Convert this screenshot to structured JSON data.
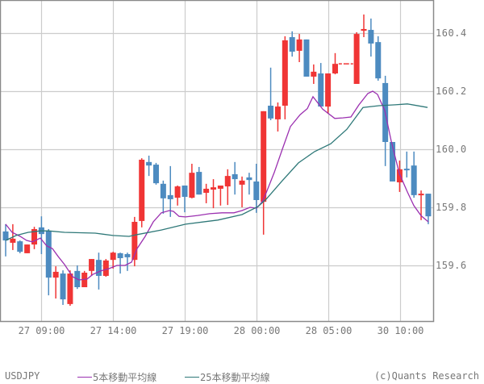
{
  "chart_data": {
    "type": "candlestick",
    "symbol": "USDJPY",
    "up_color": "#f03535",
    "down_color": "#4d8bc0",
    "ylim": [
      159.43,
      160.51
    ],
    "yticks": [
      159.6,
      159.8,
      160.0,
      160.2,
      160.4
    ],
    "ytick_labels": [
      "159.6",
      "159.8",
      "160.0",
      "160.2",
      "160.4"
    ],
    "xtick_labels": [
      "27 09:00",
      "27 14:00",
      "27 19:00",
      "28 00:00",
      "28 05:00",
      "30 10:00"
    ],
    "xtick_candle_index": [
      5,
      15,
      25,
      35,
      45,
      55
    ],
    "grid": true,
    "candles": [
      {
        "o": 159.717,
        "h": 159.742,
        "l": 159.631,
        "c": 159.686
      },
      {
        "o": 159.678,
        "h": 159.742,
        "l": 159.653,
        "c": 159.692
      },
      {
        "o": 159.683,
        "h": 159.686,
        "l": 159.642,
        "c": 159.647
      },
      {
        "o": 159.642,
        "h": 159.672,
        "l": 159.642,
        "c": 159.672
      },
      {
        "o": 159.672,
        "h": 159.733,
        "l": 159.656,
        "c": 159.725
      },
      {
        "o": 159.731,
        "h": 159.769,
        "l": 159.639,
        "c": 159.708
      },
      {
        "o": 159.719,
        "h": 159.725,
        "l": 159.497,
        "c": 159.558
      },
      {
        "o": 159.558,
        "h": 159.597,
        "l": 159.486,
        "c": 159.578
      },
      {
        "o": 159.572,
        "h": 159.583,
        "l": 159.464,
        "c": 159.483
      },
      {
        "o": 159.467,
        "h": 159.583,
        "l": 159.461,
        "c": 159.572
      },
      {
        "o": 159.581,
        "h": 159.6,
        "l": 159.519,
        "c": 159.525
      },
      {
        "o": 159.525,
        "h": 159.581,
        "l": 159.525,
        "c": 159.575
      },
      {
        "o": 159.581,
        "h": 159.622,
        "l": 159.564,
        "c": 159.622
      },
      {
        "o": 159.619,
        "h": 159.644,
        "l": 159.517,
        "c": 159.564
      },
      {
        "o": 159.564,
        "h": 159.622,
        "l": 159.561,
        "c": 159.617
      },
      {
        "o": 159.619,
        "h": 159.647,
        "l": 159.589,
        "c": 159.644
      },
      {
        "o": 159.642,
        "h": 159.644,
        "l": 159.572,
        "c": 159.625
      },
      {
        "o": 159.639,
        "h": 159.644,
        "l": 159.581,
        "c": 159.628
      },
      {
        "o": 159.619,
        "h": 159.767,
        "l": 159.597,
        "c": 159.75
      },
      {
        "o": 159.753,
        "h": 159.969,
        "l": 159.731,
        "c": 159.964
      },
      {
        "o": 159.956,
        "h": 159.978,
        "l": 159.908,
        "c": 159.944
      },
      {
        "o": 159.947,
        "h": 159.953,
        "l": 159.878,
        "c": 159.883
      },
      {
        "o": 159.881,
        "h": 159.892,
        "l": 159.778,
        "c": 159.831
      },
      {
        "o": 159.842,
        "h": 159.942,
        "l": 159.767,
        "c": 159.828
      },
      {
        "o": 159.833,
        "h": 159.875,
        "l": 159.806,
        "c": 159.872
      },
      {
        "o": 159.875,
        "h": 159.875,
        "l": 159.783,
        "c": 159.836
      },
      {
        "o": 159.833,
        "h": 159.95,
        "l": 159.831,
        "c": 159.919
      },
      {
        "o": 159.922,
        "h": 159.939,
        "l": 159.844,
        "c": 159.844
      },
      {
        "o": 159.85,
        "h": 159.881,
        "l": 159.814,
        "c": 159.864
      },
      {
        "o": 159.861,
        "h": 159.897,
        "l": 159.797,
        "c": 159.869
      },
      {
        "o": 159.864,
        "h": 159.875,
        "l": 159.806,
        "c": 159.875
      },
      {
        "o": 159.872,
        "h": 159.931,
        "l": 159.808,
        "c": 159.908
      },
      {
        "o": 159.914,
        "h": 159.956,
        "l": 159.844,
        "c": 159.897
      },
      {
        "o": 159.878,
        "h": 159.906,
        "l": 159.8,
        "c": 159.892
      },
      {
        "o": 159.903,
        "h": 159.919,
        "l": 159.844,
        "c": 159.894
      },
      {
        "o": 159.889,
        "h": 159.95,
        "l": 159.781,
        "c": 159.825
      },
      {
        "o": 159.819,
        "h": 160.131,
        "l": 159.706,
        "c": 160.131
      },
      {
        "o": 160.15,
        "h": 160.281,
        "l": 160.1,
        "c": 160.106
      },
      {
        "o": 160.103,
        "h": 160.161,
        "l": 160.061,
        "c": 160.147
      },
      {
        "o": 160.15,
        "h": 160.389,
        "l": 160.103,
        "c": 160.375
      },
      {
        "o": 160.386,
        "h": 160.406,
        "l": 160.319,
        "c": 160.336
      },
      {
        "o": 160.339,
        "h": 160.397,
        "l": 160.3,
        "c": 160.378
      },
      {
        "o": 160.378,
        "h": 160.378,
        "l": 160.25,
        "c": 160.25
      },
      {
        "o": 160.25,
        "h": 160.292,
        "l": 160.225,
        "c": 160.267
      },
      {
        "o": 160.261,
        "h": 160.297,
        "l": 160.147,
        "c": 160.147
      },
      {
        "o": 160.147,
        "h": 160.261,
        "l": 160.122,
        "c": 160.261
      },
      {
        "o": 160.261,
        "h": 160.331,
        "l": 160.258,
        "c": 160.294
      },
      {
        "o": 160.294,
        "h": 160.294,
        "l": 160.294,
        "c": 160.294,
        "gap": true
      },
      {
        "o": 160.294,
        "h": 160.294,
        "l": 160.294,
        "c": 160.294,
        "gap": true
      },
      {
        "o": 160.225,
        "h": 160.403,
        "l": 160.225,
        "c": 160.397
      },
      {
        "o": 160.408,
        "h": 160.464,
        "l": 160.386,
        "c": 160.414
      },
      {
        "o": 160.411,
        "h": 160.45,
        "l": 160.319,
        "c": 160.364
      },
      {
        "o": 160.369,
        "h": 160.389,
        "l": 160.236,
        "c": 160.244
      },
      {
        "o": 160.228,
        "h": 160.253,
        "l": 159.942,
        "c": 160.025
      },
      {
        "o": 160.025,
        "h": 160.025,
        "l": 159.889,
        "c": 159.889
      },
      {
        "o": 159.886,
        "h": 159.961,
        "l": 159.853,
        "c": 159.931
      },
      {
        "o": 159.933,
        "h": 159.992,
        "l": 159.903,
        "c": 159.928
      },
      {
        "o": 159.944,
        "h": 159.992,
        "l": 159.833,
        "c": 159.842
      },
      {
        "o": 159.842,
        "h": 159.858,
        "l": 159.756,
        "c": 159.847
      },
      {
        "o": 159.847,
        "h": 159.847,
        "l": 159.742,
        "c": 159.769
      }
    ],
    "series": [
      {
        "name": "5本移動平均線",
        "color": "#9b30b0",
        "points": [
          [
            7,
            159.742
          ],
          [
            15,
            159.714
          ],
          [
            25,
            159.7
          ],
          [
            33,
            159.686
          ],
          [
            40,
            159.681
          ],
          [
            50,
            159.694
          ],
          [
            58,
            159.667
          ],
          [
            65,
            159.658
          ],
          [
            72,
            159.631
          ],
          [
            80,
            159.603
          ],
          [
            90,
            159.561
          ],
          [
            98,
            159.55
          ],
          [
            108,
            159.553
          ],
          [
            115,
            159.569
          ],
          [
            125,
            159.581
          ],
          [
            135,
            159.589
          ],
          [
            145,
            159.6
          ],
          [
            155,
            159.6
          ],
          [
            163,
            159.611
          ],
          [
            170,
            159.658
          ],
          [
            180,
            159.7
          ],
          [
            190,
            159.75
          ],
          [
            200,
            159.781
          ],
          [
            210,
            159.789
          ],
          [
            215,
            159.786
          ],
          [
            222,
            159.769
          ],
          [
            230,
            159.767
          ],
          [
            245,
            159.772
          ],
          [
            260,
            159.778
          ],
          [
            275,
            159.781
          ],
          [
            290,
            159.781
          ],
          [
            300,
            159.789
          ],
          [
            310,
            159.8
          ],
          [
            318,
            159.797
          ],
          [
            325,
            159.819
          ],
          [
            330,
            159.85
          ],
          [
            340,
            159.92
          ],
          [
            350,
            160.0
          ],
          [
            360,
            160.078
          ],
          [
            372,
            160.119
          ],
          [
            381,
            160.14
          ],
          [
            388,
            160.181
          ],
          [
            400,
            160.138
          ],
          [
            415,
            160.106
          ],
          [
            425,
            160.108
          ],
          [
            435,
            160.111
          ],
          [
            445,
            160.153
          ],
          [
            456,
            160.192
          ],
          [
            462,
            160.2
          ],
          [
            468,
            160.189
          ],
          [
            477,
            160.133
          ],
          [
            485,
            160.028
          ],
          [
            495,
            159.917
          ],
          [
            505,
            159.853
          ],
          [
            513,
            159.806
          ],
          [
            522,
            159.771
          ],
          [
            531,
            159.75
          ]
        ]
      },
      {
        "name": "25本移動平均線",
        "color": "#2e7878",
        "points": [
          [
            7,
            159.686
          ],
          [
            20,
            159.703
          ],
          [
            35,
            159.714
          ],
          [
            50,
            159.719
          ],
          [
            60,
            159.719
          ],
          [
            80,
            159.714
          ],
          [
            118,
            159.711
          ],
          [
            140,
            159.703
          ],
          [
            160,
            159.7
          ],
          [
            170,
            159.706
          ],
          [
            200,
            159.722
          ],
          [
            230,
            159.742
          ],
          [
            270,
            159.756
          ],
          [
            300,
            159.775
          ],
          [
            320,
            159.803
          ],
          [
            330,
            159.828
          ],
          [
            350,
            159.892
          ],
          [
            370,
            159.953
          ],
          [
            390,
            159.992
          ],
          [
            410,
            160.019
          ],
          [
            430,
            160.069
          ],
          [
            450,
            160.144
          ],
          [
            470,
            160.15
          ],
          [
            490,
            160.153
          ],
          [
            505,
            160.156
          ],
          [
            530,
            160.144
          ]
        ]
      }
    ],
    "title": "",
    "xlabel": "",
    "ylabel": ""
  },
  "footer": {
    "symbol": "USDJPY",
    "legend_ma5": "5本移動平均線",
    "legend_ma25": "25本移動平均線",
    "copyright": "(c)Quants Research"
  }
}
